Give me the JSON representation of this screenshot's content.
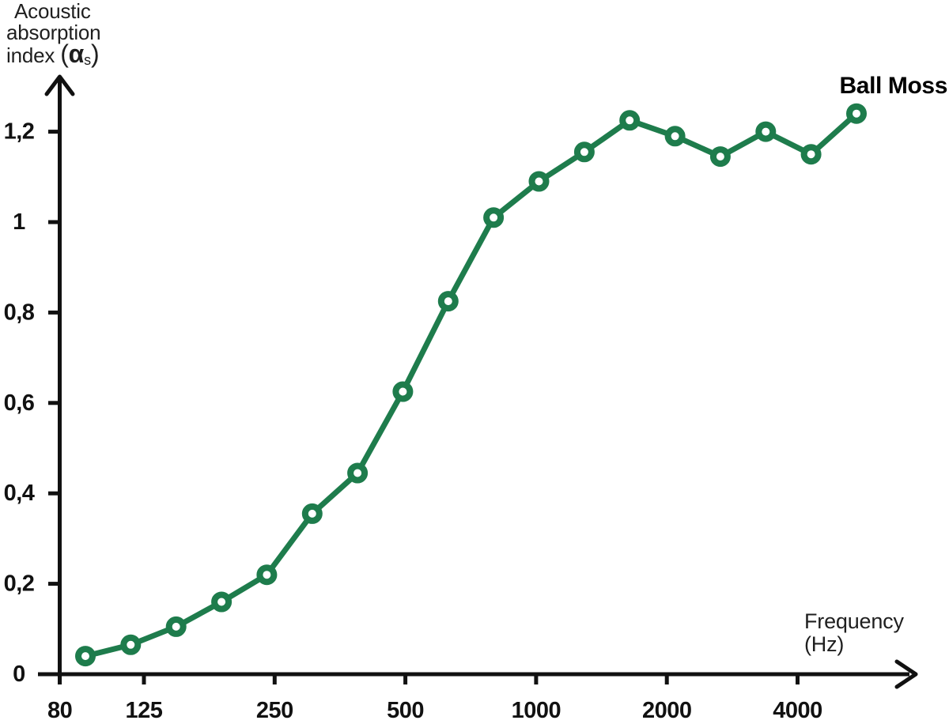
{
  "chart_data": {
    "type": "line",
    "series_label": "Ball Moss",
    "ylabel_lines": [
      "Acoustic",
      "absorption",
      "index"
    ],
    "ylabel_symbol": {
      "open": "(",
      "alpha": "α",
      "sub": "s",
      "close": ")"
    },
    "xlabel_line1": "Frequency",
    "xlabel_line2": "(Hz)",
    "x": [
      100,
      125,
      160,
      200,
      250,
      315,
      400,
      500,
      630,
      800,
      1000,
      1250,
      1600,
      2000,
      2500,
      3150,
      4000,
      5000
    ],
    "y": [
      0.04,
      0.065,
      0.105,
      0.16,
      0.22,
      0.355,
      0.445,
      0.625,
      0.825,
      1.01,
      1.09,
      1.155,
      1.225,
      1.19,
      1.145,
      1.2,
      1.15,
      1.24
    ],
    "x_ticks": [
      {
        "value": 80,
        "label": "80"
      },
      {
        "value": 125,
        "label": "125"
      },
      {
        "value": 250,
        "label": "250"
      },
      {
        "value": 500,
        "label": "500"
      },
      {
        "value": 1000,
        "label": "1000"
      },
      {
        "value": 2000,
        "label": "2000"
      },
      {
        "value": 4000,
        "label": "4000"
      }
    ],
    "y_ticks": [
      {
        "value": 0,
        "label": "0"
      },
      {
        "value": 0.2,
        "label": "0,2"
      },
      {
        "value": 0.4,
        "label": "0,4"
      },
      {
        "value": 0.6,
        "label": "0,6"
      },
      {
        "value": 0.8,
        "label": "0,8"
      },
      {
        "value": 1,
        "label": "1"
      },
      {
        "value": 1.2,
        "label": "1,2"
      }
    ],
    "x_scale": "log",
    "ylim": [
      0,
      1.3
    ],
    "grid": false,
    "legend_position": "top-right",
    "line_color": "#1e7c4c",
    "marker_fill": "#ffffff",
    "axis_color": "#111111",
    "marker": "open-circle"
  }
}
